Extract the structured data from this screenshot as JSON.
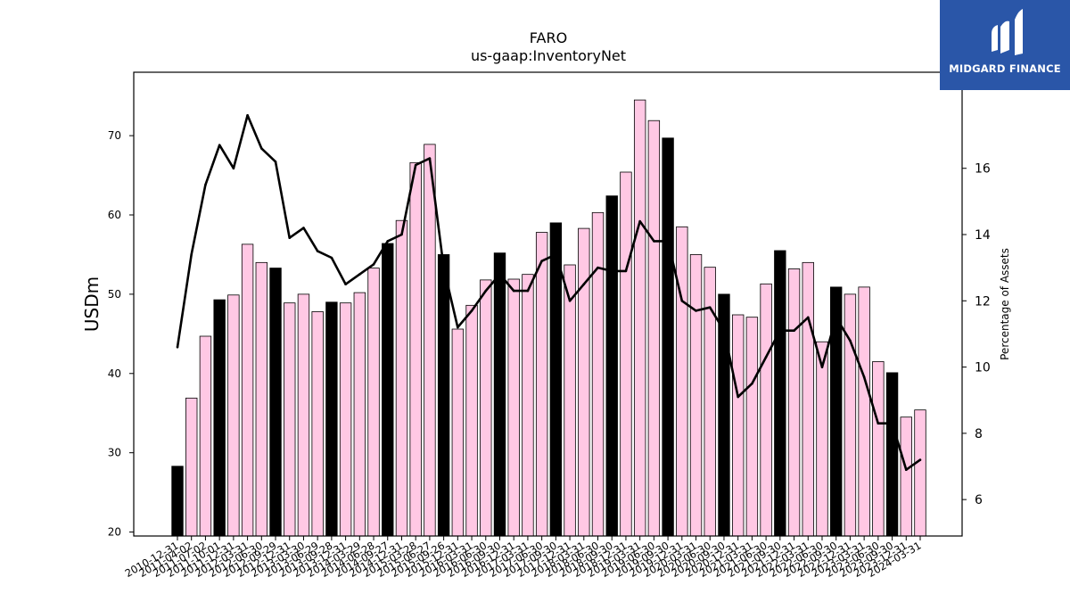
{
  "brand": {
    "name": "MIDGARD FINANCE",
    "color": "#2a56a8"
  },
  "chart_data": {
    "type": "bar",
    "title": "FARO",
    "subtitle": "us-gaap:InventoryNet",
    "ylabel": "USDm",
    "y2label": "Percentage of Assets",
    "ylim": [
      19.5,
      78
    ],
    "y2lim": [
      4.9,
      18.9
    ],
    "yticks": [
      20,
      30,
      40,
      50,
      60,
      70
    ],
    "y2ticks": [
      6,
      8,
      10,
      12,
      14,
      16
    ],
    "grid": false,
    "colors": {
      "q4_bar": "#000000",
      "bar": "#ffc8e4",
      "line": "#000000"
    },
    "categories": [
      "2010-12-31",
      "2011-04-02",
      "2011-07-02",
      "2011-10-01",
      "2011-12-31",
      "2012-03-31",
      "2012-06-30",
      "2012-09-29",
      "2012-12-31",
      "2013-03-30",
      "2013-06-29",
      "2013-09-28",
      "2013-12-31",
      "2014-03-29",
      "2014-06-28",
      "2014-09-27",
      "2014-12-31",
      "2015-03-28",
      "2015-06-27",
      "2015-09-26",
      "2015-12-31",
      "2016-03-31",
      "2016-06-30",
      "2016-09-30",
      "2016-12-31",
      "2017-03-31",
      "2017-06-30",
      "2017-09-30",
      "2017-12-31",
      "2018-03-31",
      "2018-06-30",
      "2018-09-30",
      "2018-12-31",
      "2019-03-31",
      "2019-06-30",
      "2019-09-30",
      "2019-12-31",
      "2020-03-31",
      "2020-06-30",
      "2020-09-30",
      "2020-12-31",
      "2021-03-31",
      "2021-06-30",
      "2021-09-30",
      "2021-12-31",
      "2022-03-31",
      "2022-06-30",
      "2022-09-30",
      "2022-12-31",
      "2023-03-31",
      "2023-06-30",
      "2023-09-30",
      "2023-12-31",
      "2024-03-31"
    ],
    "series": [
      {
        "kind": "bar",
        "values": [
          28.3,
          36.9,
          44.7,
          49.3,
          49.9,
          56.3,
          54.0,
          53.3,
          48.9,
          50.0,
          47.8,
          49.0,
          48.9,
          50.2,
          53.3,
          56.4,
          59.3,
          66.6,
          68.9,
          55.0,
          45.6,
          48.6,
          51.8,
          55.2,
          51.9,
          52.5,
          57.8,
          59.0,
          53.7,
          58.3,
          60.3,
          62.4,
          65.4,
          74.5,
          71.9,
          69.7,
          58.5,
          55.0,
          53.4,
          50.0,
          47.4,
          47.1,
          51.3,
          55.5,
          53.2,
          54.0,
          44.0,
          50.9,
          50.0,
          50.9,
          41.5,
          40.1,
          34.5,
          35.4
        ],
        "q4_highlight": [
          0,
          3,
          7,
          11,
          15,
          19,
          23,
          27,
          31,
          35,
          39,
          43,
          47,
          51
        ]
      },
      {
        "kind": "line",
        "axis": "right",
        "values": [
          10.6,
          13.4,
          15.5,
          16.7,
          16.0,
          17.6,
          16.6,
          16.2,
          13.9,
          14.2,
          13.5,
          13.3,
          12.5,
          12.8,
          13.1,
          13.8,
          14.0,
          16.1,
          16.3,
          13.0,
          11.2,
          11.7,
          12.3,
          12.8,
          12.3,
          12.3,
          13.2,
          13.4,
          12.0,
          12.5,
          13.0,
          12.9,
          12.9,
          14.4,
          13.8,
          13.8,
          12.0,
          11.7,
          11.8,
          11.1,
          9.1,
          9.5,
          10.3,
          11.1,
          11.1,
          11.5,
          10.0,
          11.5,
          10.8,
          9.7,
          8.3,
          8.3,
          6.9,
          7.2
        ]
      }
    ]
  }
}
